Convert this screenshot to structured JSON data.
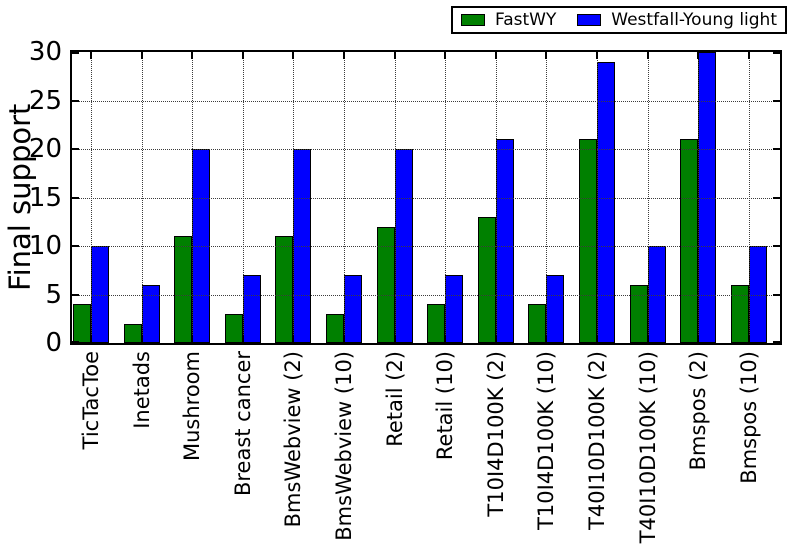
{
  "chart_data": {
    "type": "bar",
    "title": "",
    "xlabel": "",
    "ylabel": "Final support",
    "ylim": [
      0,
      30
    ],
    "yticks": [
      0,
      5,
      10,
      15,
      20,
      25,
      30
    ],
    "grid": true,
    "grid_style": "dotted",
    "legend_position": "upper right",
    "background_color": "#ffffff",
    "axis_color": "#000000",
    "bar_edge_color": "#000000",
    "categories": [
      "TicTacToe",
      "Inetads",
      "Mushroom",
      "Breast cancer",
      "BmsWebview (2)",
      "BmsWebview (10)",
      "Retail (2)",
      "Retail (10)",
      "T10I4D100K (2)",
      "T10I4D100K (10)",
      "T40I10D100K (2)",
      "T40I10D100K (10)",
      "Bmspos (2)",
      "Bmspos (10)"
    ],
    "series": [
      {
        "name": "FastWY",
        "color": "#008000",
        "values": [
          4,
          2,
          11,
          3,
          11,
          3,
          12,
          4,
          13,
          4,
          21,
          6,
          21,
          6
        ]
      },
      {
        "name": "Westfall-Young light",
        "color": "#0000ff",
        "values": [
          10,
          6,
          20,
          7,
          20,
          7,
          20,
          7,
          21,
          7,
          29,
          10,
          30,
          10
        ]
      }
    ]
  }
}
